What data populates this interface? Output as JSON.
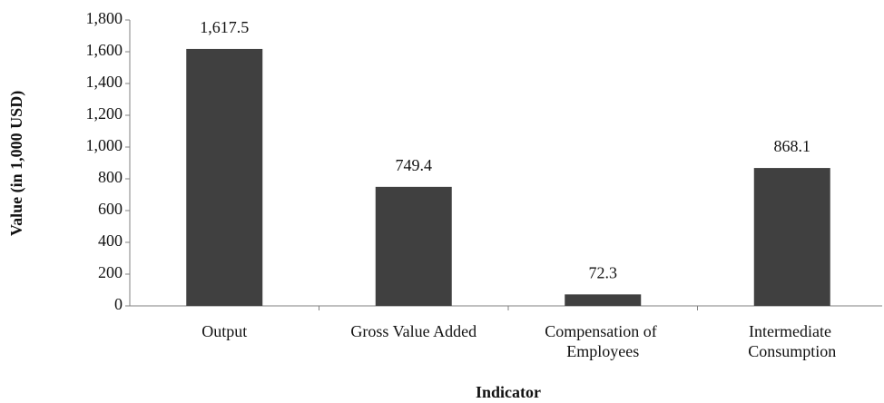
{
  "chart_data": {
    "type": "bar",
    "x_label": "Indicator",
    "y_label": "Value (in 1,000 USD)",
    "categories": [
      "Output",
      "Gross Value Added",
      "Compensation of Employees",
      "Intermediate Consumption"
    ],
    "values": [
      1617.5,
      749.4,
      72.3,
      868.1
    ],
    "value_labels": [
      "1,617.5",
      "749.4",
      "72.3",
      "868.1"
    ],
    "color": "#404040",
    "ylim": [
      0,
      1800
    ],
    "yticks": [
      0,
      200,
      400,
      600,
      800,
      {
        "value": 1000,
        "label": "1,000"
      },
      {
        "value": 1200,
        "label": "1,200"
      },
      {
        "value": 1400,
        "label": "1,400"
      },
      {
        "value": 1600,
        "label": "1,600"
      },
      {
        "value": 1800,
        "label": "1,800"
      }
    ],
    "grid": false
  }
}
